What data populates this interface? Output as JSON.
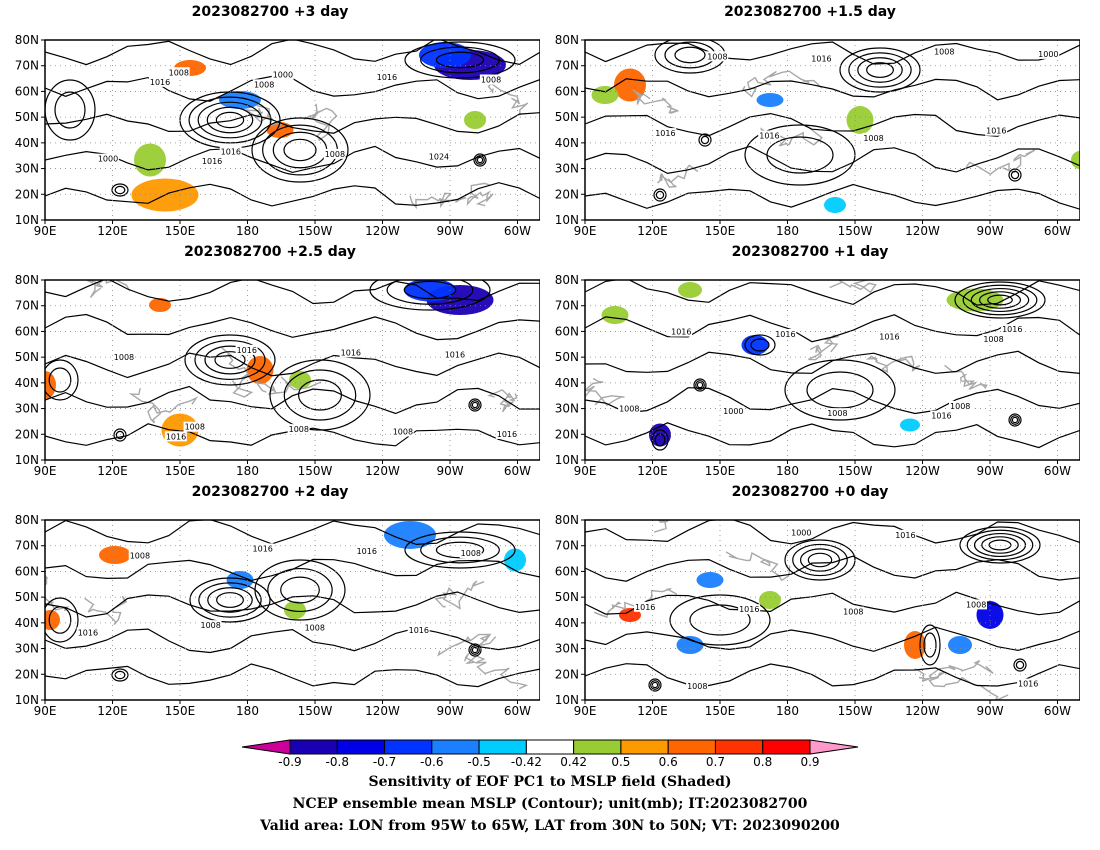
{
  "panels": [
    {
      "title": "2023082700  +3 day",
      "labels": [
        "1008",
        "1016",
        "1000",
        "1008",
        "1016",
        "1024",
        "1008",
        "1000",
        "1016",
        "1016",
        "1008"
      ]
    },
    {
      "title": "2023082700  +1.5 day",
      "labels": [
        "1008",
        "1016",
        "1000",
        "1016",
        "1008",
        "1016",
        "1016",
        "1008"
      ]
    },
    {
      "title": "2023082700  +2.5 day",
      "labels": [
        "1008",
        "1016",
        "1008",
        "1016",
        "1008",
        "1016",
        "1016",
        "1008",
        "1016"
      ]
    },
    {
      "title": "2023082700  +1 day",
      "labels": [
        "1008",
        "1016",
        "1008",
        "1016",
        "1000",
        "1016",
        "1008",
        "1016",
        "1016",
        "1008"
      ]
    },
    {
      "title": "2023082700  +2 day",
      "labels": [
        "1008",
        "1016",
        "1008",
        "1016",
        "1016",
        "1008",
        "1016",
        "1008"
      ]
    },
    {
      "title": "2023082700  +0 day",
      "labels": [
        "1008",
        "1016",
        "1016",
        "1008",
        "1016",
        "1000",
        "1008",
        "1016"
      ]
    }
  ],
  "lat_labels": [
    "80N",
    "70N",
    "60N",
    "50N",
    "40N",
    "30N",
    "20N",
    "10N"
  ],
  "lon_labels": [
    "90E",
    "120E",
    "150E",
    "180",
    "150W",
    "120W",
    "90W",
    "60W"
  ],
  "colorbar": {
    "levels": [
      "-0.9",
      "-0.8",
      "-0.7",
      "-0.6",
      "-0.5",
      "-0.42",
      "0.42",
      "0.5",
      "0.6",
      "0.7",
      "0.8",
      "0.9"
    ],
    "colors": [
      "#cc0099",
      "#1a00b3",
      "#0000e6",
      "#0033ff",
      "#1a80ff",
      "#00ccff",
      "#ffffff",
      "#99cc33",
      "#ff9900",
      "#ff6600",
      "#ff3300",
      "#ff0000",
      "#ff99cc"
    ]
  },
  "captions": [
    "Sensitivity of EOF PC1 to MSLP field (Shaded)",
    "NCEP ensemble mean MSLP (Contour); unit(mb); IT:2023082700",
    "Valid area: LON from 95W to 65W, LAT from 30N to 50N; VT: 2023090200"
  ]
}
